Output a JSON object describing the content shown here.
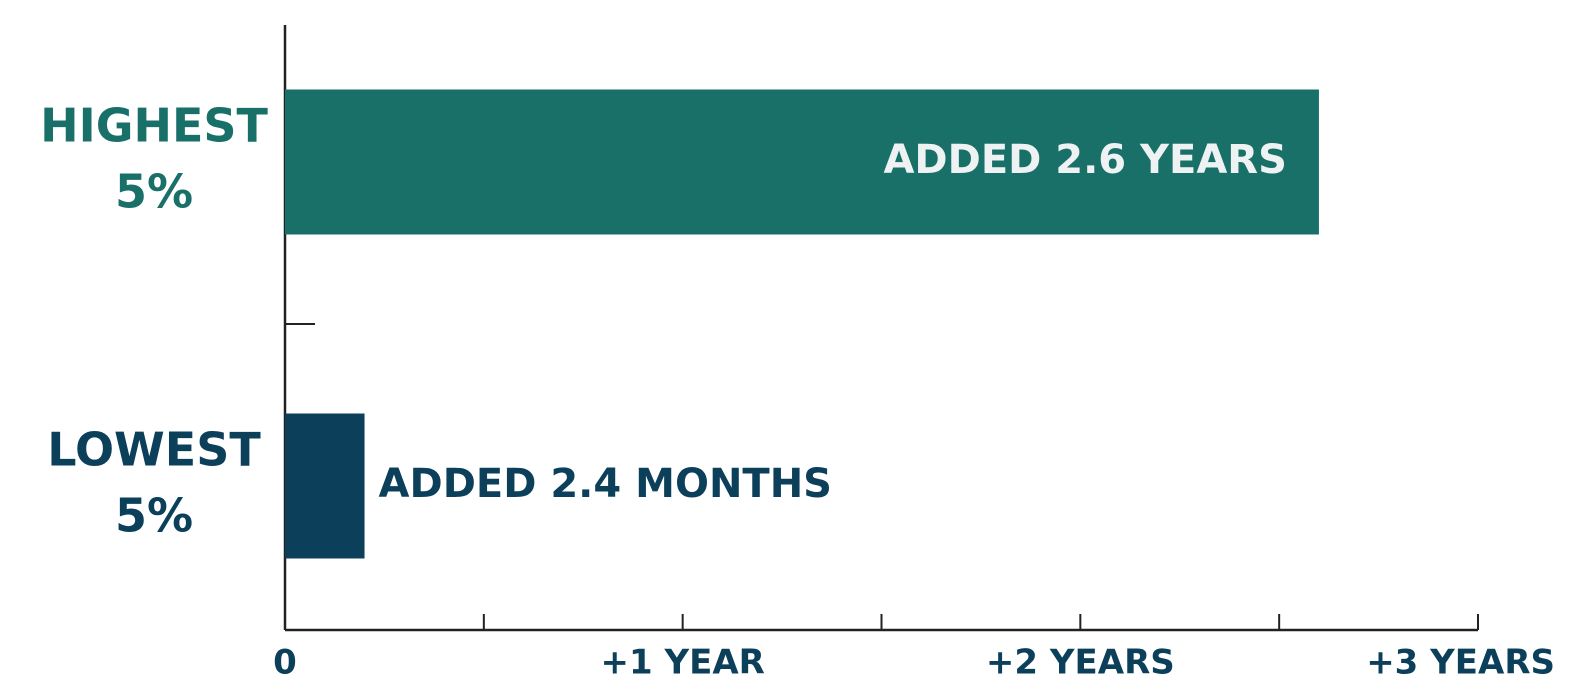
{
  "chart_data": {
    "type": "hbar",
    "categories": [
      [
        "HIGHEST",
        "5%"
      ],
      [
        "LOWEST",
        "5%"
      ]
    ],
    "values": [
      2.6,
      0.2
    ],
    "value_labels": [
      "ADDED 2.6 YEARS",
      "ADDED 2.4 MONTHS"
    ],
    "colors": [
      "#187069",
      "#0b3f5a"
    ],
    "xlim": [
      0,
      3
    ],
    "xticks": [
      0,
      {
        "value": 1,
        "label": "+1 YEAR"
      },
      {
        "value": 2,
        "label": "+2 YEARS"
      },
      {
        "value": 3,
        "label": "+3 YEARS"
      }
    ],
    "xminor_ticks": [
      0.5,
      1.5,
      2.5
    ]
  }
}
